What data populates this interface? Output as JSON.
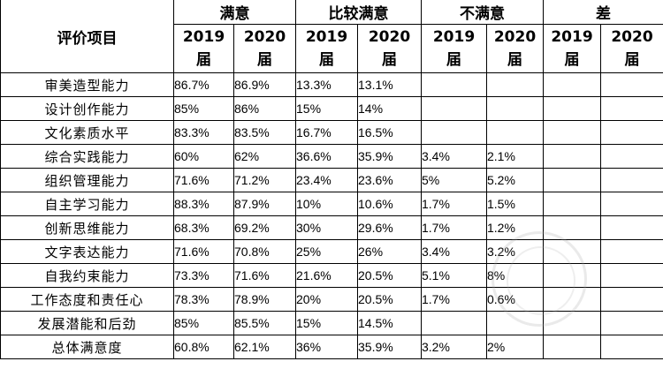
{
  "header": {
    "item_label": "评价项目",
    "groups": [
      "满意",
      "比较满意",
      "不满意",
      "差"
    ],
    "year_labels": [
      "2019",
      "2020",
      "2019",
      "2020",
      "2019",
      "2020",
      "2019",
      "2020"
    ],
    "cohort_label": "届"
  },
  "rows": [
    {
      "item": "审美造型能力",
      "values": [
        "86.7%",
        "86.9%",
        "13.3%",
        "13.1%",
        "",
        "",
        "",
        ""
      ]
    },
    {
      "item": "设计创作能力",
      "values": [
        "85%",
        "86%",
        "15%",
        "14%",
        "",
        "",
        "",
        ""
      ]
    },
    {
      "item": "文化素质水平",
      "values": [
        "83.3%",
        "83.5%",
        "16.7%",
        "16.5%",
        "",
        "",
        "",
        ""
      ]
    },
    {
      "item": "综合实践能力",
      "values": [
        "60%",
        "62%",
        "36.6%",
        "35.9%",
        "3.4%",
        "2.1%",
        "",
        ""
      ]
    },
    {
      "item": "组织管理能力",
      "values": [
        "71.6%",
        "71.2%",
        "23.4%",
        "23.6%",
        "5%",
        "5.2%",
        "",
        ""
      ]
    },
    {
      "item": "自主学习能力",
      "values": [
        "88.3%",
        "87.9%",
        "10%",
        "10.6%",
        "1.7%",
        "1.5%",
        "",
        ""
      ]
    },
    {
      "item": "创新思维能力",
      "values": [
        "68.3%",
        "69.2%",
        "30%",
        "29.6%",
        "1.7%",
        "1.2%",
        "",
        ""
      ]
    },
    {
      "item": "文字表达能力",
      "values": [
        "71.6%",
        "70.8%",
        "25%",
        "26%",
        "3.4%",
        "3.2%",
        "",
        ""
      ]
    },
    {
      "item": "自我约束能力",
      "values": [
        "73.3%",
        "71.6%",
        "21.6%",
        "20.5%",
        "5.1%",
        "8%",
        "",
        ""
      ]
    },
    {
      "item": "工作态度和责任心",
      "values": [
        "78.3%",
        "78.9%",
        "20%",
        "20.5%",
        "1.7%",
        "0.6%",
        "",
        ""
      ]
    },
    {
      "item": "发展潜能和后劲",
      "values": [
        "85%",
        "85.5%",
        "15%",
        "14.5%",
        "",
        "",
        "",
        ""
      ]
    },
    {
      "item": "总体满意度",
      "values": [
        "60.8%",
        "62.1%",
        "36%",
        "35.9%",
        "3.2%",
        "2%",
        "",
        ""
      ]
    }
  ]
}
